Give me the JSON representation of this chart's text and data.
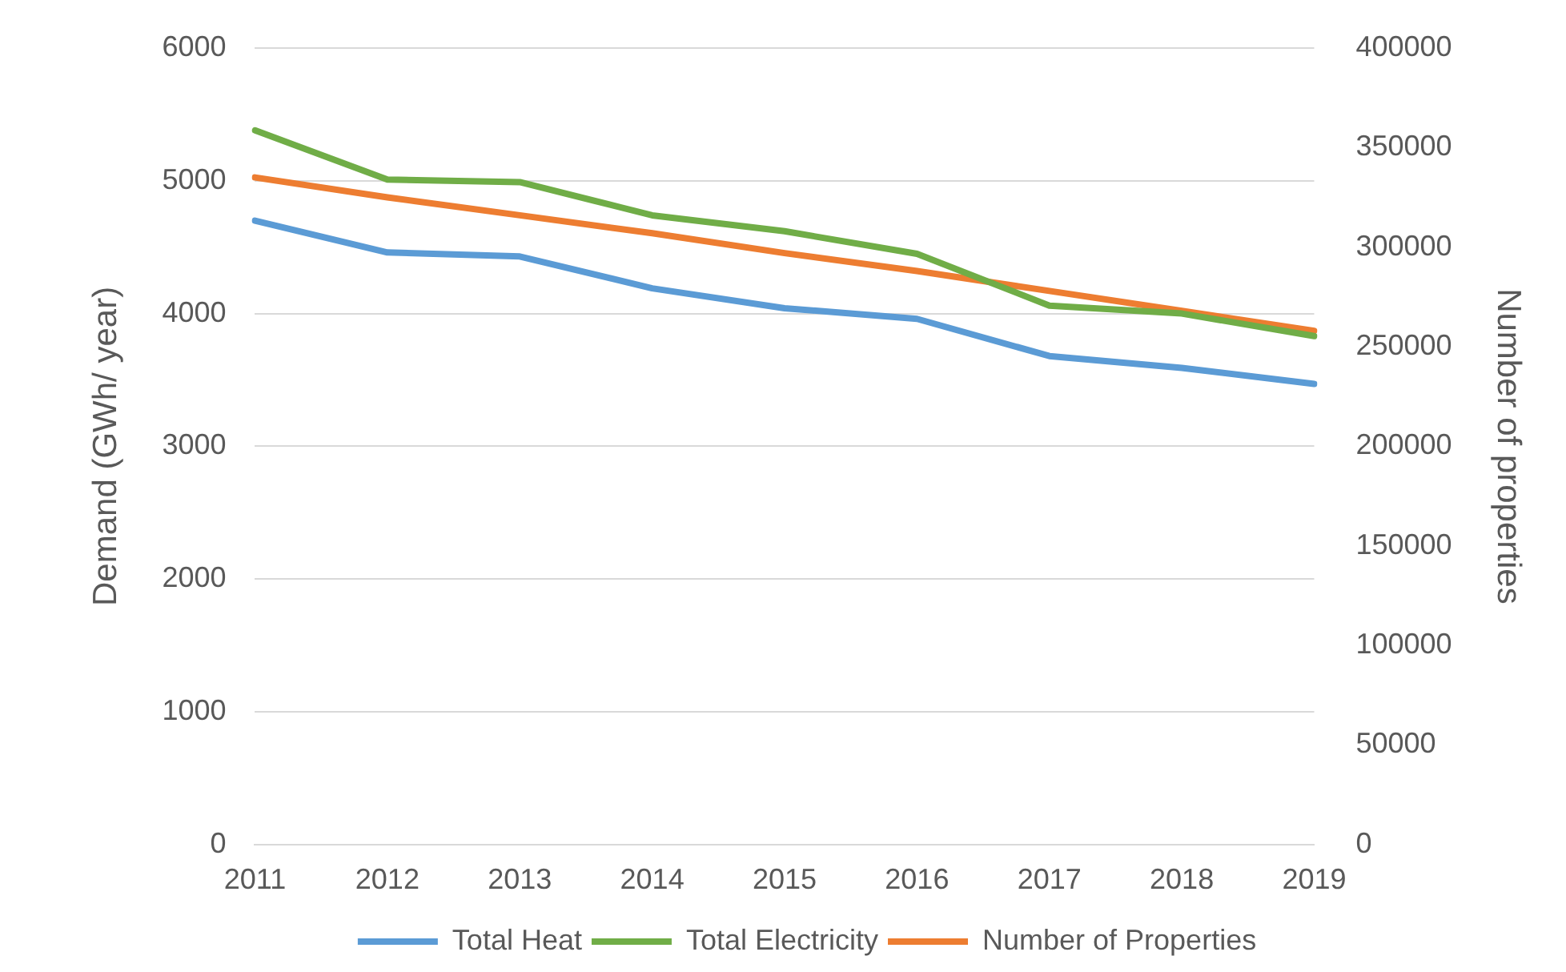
{
  "chart_data": {
    "type": "line",
    "ylabel": "Demand (GWh/ year)",
    "y2label": "Number of properties",
    "categories": [
      "2011",
      "2012",
      "2013",
      "2014",
      "2015",
      "2016",
      "2017",
      "2018",
      "2019"
    ],
    "series": [
      {
        "name": "Total Heat",
        "color": "#5b9bd5",
        "values": [
          4700,
          4460,
          4430,
          4190,
          4040,
          3960,
          3680,
          3590,
          3470
        ]
      },
      {
        "name": "Total Electricity",
        "color": "#70ad47",
        "values": [
          5380,
          5010,
          4990,
          4740,
          4620,
          4450,
          4060,
          4000,
          3830
        ]
      },
      {
        "name": "Number of Properties",
        "color": "#ed7d31",
        "axis": "y2",
        "values": [
          335000,
          325000,
          316000,
          307000,
          297000,
          288000,
          278000,
          268000,
          258000
        ]
      }
    ],
    "ylim": [
      0,
      6000
    ],
    "yticks": [
      0,
      1000,
      2000,
      3000,
      4000,
      5000,
      6000
    ],
    "y2lim": [
      0,
      400000
    ],
    "y2ticks": [
      0,
      50000,
      100000,
      150000,
      200000,
      250000,
      300000,
      350000,
      400000
    ],
    "grid": "y",
    "legend": "bottom",
    "marker": "none",
    "line_style": "solid"
  }
}
